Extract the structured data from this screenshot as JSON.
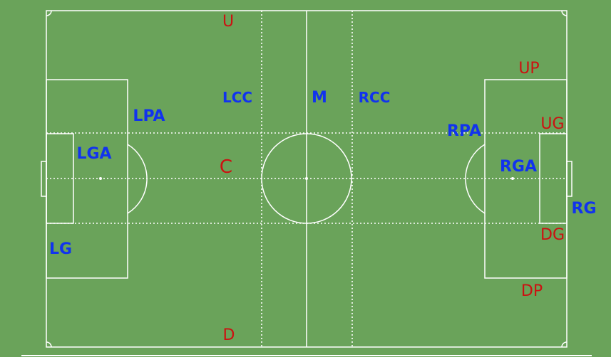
{
  "pitch": {
    "grass_color": "#6aa35a",
    "line_color": "#ffffff",
    "blue_label_color": "#1133ee",
    "red_label_color": "#cc1111"
  },
  "labels": {
    "top": "U",
    "bottom": "D",
    "center": "C",
    "midfield": "M",
    "left_center_channel": "LCC",
    "right_center_channel": "RCC",
    "left_penalty_area": "LPA",
    "left_goal_area": "LGA",
    "left_goal": "LG",
    "right_penalty_area": "RPA",
    "right_goal_area": "RGA",
    "right_goal": "RG",
    "upper_penalty": "UP",
    "upper_goal": "UG",
    "down_goal": "DG",
    "down_penalty": "DP"
  }
}
